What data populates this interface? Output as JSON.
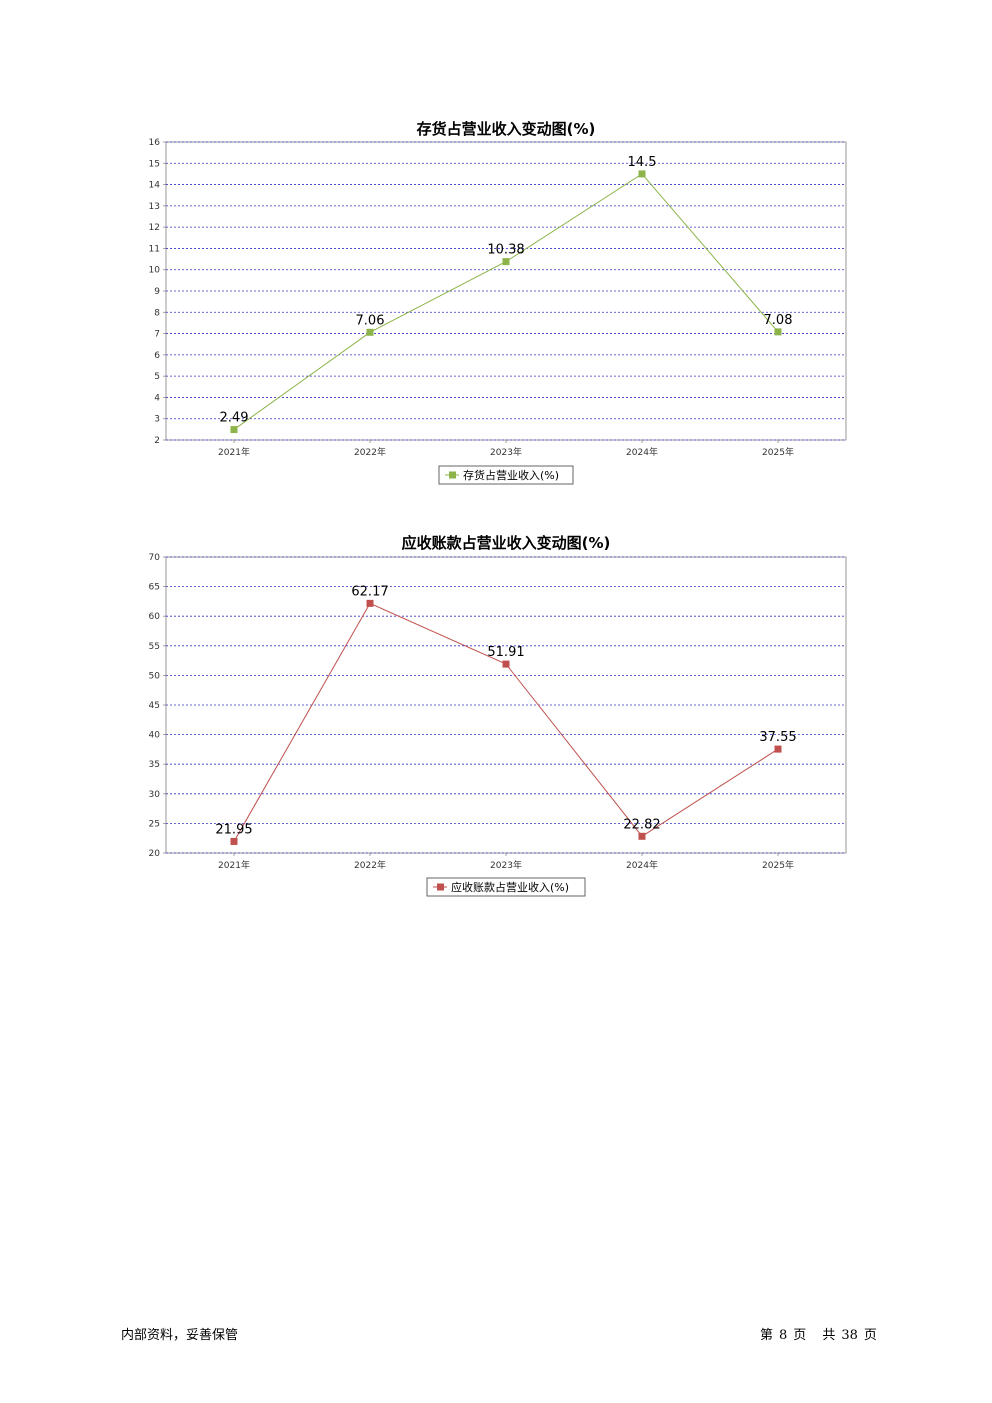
{
  "chart_data": [
    {
      "type": "line",
      "title": "存货占营业收入变动图(%)",
      "categories": [
        "2021年",
        "2022年",
        "2023年",
        "2024年",
        "2025年"
      ],
      "series": [
        {
          "name": "存货占营业收入(%)",
          "values": [
            2.49,
            7.06,
            10.38,
            14.5,
            7.08
          ],
          "color": "#8DB44A"
        }
      ],
      "data_labels": [
        "2.49",
        "7.06",
        "10.38",
        "14.5",
        "7.08"
      ],
      "ylim": [
        2,
        16
      ],
      "yticks": [
        "2",
        "3",
        "4",
        "5",
        "6",
        "7",
        "8",
        "9",
        "10",
        "11",
        "12",
        "13",
        "14",
        "15",
        "16"
      ],
      "grid": true,
      "grid_color": "#3333CC",
      "legend": "bottom-center"
    },
    {
      "type": "line",
      "title": "应收账款占营业收入变动图(%)",
      "categories": [
        "2021年",
        "2022年",
        "2023年",
        "2024年",
        "2025年"
      ],
      "series": [
        {
          "name": "应收账款占营业收入(%)",
          "values": [
            21.95,
            62.17,
            51.91,
            22.82,
            37.55
          ],
          "color": "#C0504D"
        }
      ],
      "data_labels": [
        "21.95",
        "62.17",
        "51.91",
        "22.82",
        "37.55"
      ],
      "ylim": [
        20,
        70
      ],
      "yticks": [
        "20",
        "25",
        "30",
        "35",
        "40",
        "45",
        "50",
        "55",
        "60",
        "65",
        "70"
      ],
      "grid": true,
      "grid_color": "#3333CC",
      "legend": "bottom-center"
    }
  ],
  "footer": {
    "left": "内部资料，妥善保管",
    "page_prefix": "第",
    "page_number": "8",
    "page_suffix": "页",
    "total_prefix": "共",
    "total_pages": "38",
    "total_suffix": "页"
  }
}
